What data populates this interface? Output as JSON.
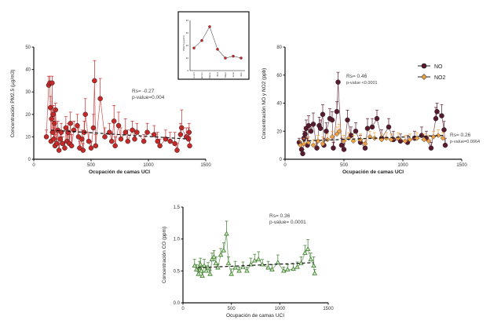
{
  "chart_data": [
    {
      "id": "pm25",
      "type": "scatter",
      "xlabel": "Ocupación de camas UCI",
      "ylabel": "Concentración PM2.5 (µg/m3)",
      "xlim": [
        0,
        1500
      ],
      "ylim": [
        0,
        50
      ],
      "xticks": [
        0,
        500,
        1000,
        1500
      ],
      "yticks": [
        0,
        10,
        20,
        30,
        40,
        50
      ],
      "annotation": [
        "Rs= -0.27",
        "p-value=0.004"
      ],
      "trend": [
        [
          150,
          13
        ],
        [
          1350,
          9
        ]
      ],
      "series": [
        {
          "color": "#c62828",
          "marker": "circle",
          "connected": true,
          "points": [
            [
              110,
              10,
              3
            ],
            [
              130,
              33,
              4
            ],
            [
              140,
              34,
              3
            ],
            [
              145,
              23,
              5
            ],
            [
              150,
              8,
              4
            ],
            [
              155,
              18,
              5
            ],
            [
              160,
              34,
              3
            ],
            [
              165,
              12,
              6
            ],
            [
              170,
              20,
              4
            ],
            [
              175,
              9,
              5
            ],
            [
              180,
              16,
              6
            ],
            [
              185,
              6,
              5
            ],
            [
              190,
              22,
              3
            ],
            [
              200,
              7,
              5
            ],
            [
              210,
              13,
              4
            ],
            [
              220,
              4,
              3
            ],
            [
              230,
              9,
              4
            ],
            [
              240,
              12,
              4
            ],
            [
              250,
              7,
              3
            ],
            [
              270,
              5,
              3
            ],
            [
              280,
              14,
              5
            ],
            [
              290,
              8,
              6
            ],
            [
              300,
              12,
              4
            ],
            [
              310,
              7,
              4
            ],
            [
              320,
              16,
              5
            ],
            [
              330,
              6,
              5
            ],
            [
              350,
              13,
              4
            ],
            [
              380,
              15,
              5
            ],
            [
              390,
              10,
              4
            ],
            [
              400,
              5,
              3
            ],
            [
              420,
              9,
              4
            ],
            [
              430,
              4,
              3
            ],
            [
              440,
              12,
              5
            ],
            [
              450,
              20,
              7
            ],
            [
              480,
              8,
              4
            ],
            [
              500,
              5,
              3
            ],
            [
              520,
              14,
              6
            ],
            [
              530,
              35,
              9
            ],
            [
              540,
              6,
              5
            ],
            [
              580,
              27,
              9
            ],
            [
              620,
              10,
              4
            ],
            [
              660,
              12,
              4
            ],
            [
              680,
              8,
              4
            ],
            [
              700,
              17,
              7
            ],
            [
              710,
              6,
              4
            ],
            [
              740,
              15,
              6
            ],
            [
              760,
              9,
              5
            ],
            [
              800,
              12,
              6
            ],
            [
              820,
              8,
              5
            ],
            [
              860,
              13,
              4
            ],
            [
              880,
              9,
              4
            ],
            [
              900,
              12,
              4
            ],
            [
              960,
              8,
              3
            ],
            [
              990,
              12,
              4
            ],
            [
              1050,
              11,
              4
            ],
            [
              1080,
              8,
              4
            ],
            [
              1100,
              6,
              3
            ],
            [
              1150,
              9,
              4
            ],
            [
              1190,
              8,
              4
            ],
            [
              1230,
              7,
              5
            ],
            [
              1250,
              4,
              3
            ],
            [
              1280,
              11,
              5
            ],
            [
              1290,
              14,
              8
            ],
            [
              1330,
              10,
              4
            ],
            [
              1350,
              9,
              5
            ],
            [
              1355,
              12,
              4
            ],
            [
              1360,
              6,
              4
            ]
          ]
        }
      ]
    },
    {
      "id": "no",
      "type": "scatter",
      "xlabel": "Ocupación de camas UCI",
      "ylabel": "Concentración NO y NO2 (ppb)",
      "xlim": [
        0,
        1500
      ],
      "ylim": [
        0,
        80
      ],
      "xticks": [
        0,
        500,
        1000,
        1500
      ],
      "yticks": [
        0,
        20,
        40,
        60,
        80
      ],
      "annotation": [
        "Rs= 0.46",
        "p-value <0.0001"
      ],
      "annotation2": [
        "Rs= 0.26",
        "p-value=0.0064"
      ],
      "trend": [
        [
          150,
          13
        ],
        [
          1350,
          17
        ]
      ],
      "legend": "top-right",
      "series": [
        {
          "name": "NO",
          "color": "#5a1a2e",
          "marker": "circle",
          "connected": true,
          "points": [
            [
              120,
              12,
              3
            ],
            [
              140,
              7,
              4
            ],
            [
              150,
              4,
              3
            ],
            [
              160,
              15,
              5
            ],
            [
              170,
              18,
              5
            ],
            [
              180,
              22,
              6
            ],
            [
              190,
              10,
              5
            ],
            [
              200,
              24,
              7
            ],
            [
              220,
              20,
              5
            ],
            [
              240,
              25,
              8
            ],
            [
              270,
              8,
              5
            ],
            [
              290,
              24,
              6
            ],
            [
              300,
              22,
              6
            ],
            [
              320,
              32,
              7
            ],
            [
              330,
              10,
              5
            ],
            [
              350,
              20,
              6
            ],
            [
              380,
              29,
              7
            ],
            [
              400,
              28,
              6
            ],
            [
              410,
              8,
              4
            ],
            [
              440,
              34,
              7
            ],
            [
              450,
              55,
              7
            ],
            [
              480,
              10,
              5
            ],
            [
              500,
              7,
              4
            ],
            [
              530,
              28,
              7
            ],
            [
              560,
              17,
              6
            ],
            [
              600,
              20,
              6
            ],
            [
              640,
              12,
              5
            ],
            [
              680,
              8,
              4
            ],
            [
              700,
              22,
              7
            ],
            [
              740,
              23,
              6
            ],
            [
              780,
              29,
              6
            ],
            [
              820,
              15,
              6
            ],
            [
              880,
              23,
              6
            ],
            [
              920,
              14,
              6
            ],
            [
              980,
              13,
              5
            ],
            [
              1040,
              12,
              5
            ],
            [
              1100,
              15,
              5
            ],
            [
              1160,
              17,
              6
            ],
            [
              1200,
              15,
              5
            ],
            [
              1240,
              8,
              4
            ],
            [
              1280,
              29,
              8
            ],
            [
              1290,
              34,
              6
            ],
            [
              1330,
              31,
              8
            ],
            [
              1350,
              21,
              6
            ],
            [
              1360,
              10,
              5
            ]
          ]
        },
        {
          "name": "NO2",
          "color": "#f0a040",
          "marker": "diamond",
          "connected": true,
          "points": [
            [
              130,
              10,
              3
            ],
            [
              160,
              11,
              4
            ],
            [
              200,
              12,
              4
            ],
            [
              240,
              10,
              4
            ],
            [
              280,
              13,
              4
            ],
            [
              320,
              11,
              5
            ],
            [
              360,
              14,
              4
            ],
            [
              400,
              16,
              4
            ],
            [
              440,
              18,
              5
            ],
            [
              460,
              20,
              5
            ],
            [
              500,
              13,
              4
            ],
            [
              540,
              15,
              4
            ],
            [
              580,
              13,
              4
            ],
            [
              640,
              14,
              4
            ],
            [
              680,
              11,
              4
            ],
            [
              720,
              16,
              4
            ],
            [
              760,
              15,
              4
            ],
            [
              820,
              14,
              4
            ],
            [
              860,
              15,
              4
            ],
            [
              900,
              14,
              4
            ],
            [
              960,
              15,
              4
            ],
            [
              1020,
              13,
              4
            ],
            [
              1060,
              14,
              4
            ],
            [
              1120,
              15,
              4
            ],
            [
              1180,
              14,
              4
            ],
            [
              1220,
              13,
              4
            ],
            [
              1260,
              16,
              4
            ],
            [
              1300,
              17,
              4
            ],
            [
              1340,
              15,
              4
            ]
          ]
        }
      ]
    },
    {
      "id": "co",
      "type": "scatter",
      "xlabel": "Ocupación de camas UCI",
      "ylabel": "Concentración CO (ppm)",
      "xlim": [
        0,
        1500
      ],
      "ylim": [
        0,
        1.5
      ],
      "xticks": [
        0,
        500,
        1000,
        1500
      ],
      "yticks": [
        0.0,
        0.5,
        1.0,
        1.5
      ],
      "annotation": [
        "Rs= 0.36",
        "p-value= 0.0001"
      ],
      "trend": [
        [
          150,
          0.55
        ],
        [
          1350,
          0.63
        ]
      ],
      "series": [
        {
          "color": "#3a7a2a",
          "marker": "triangle",
          "connected": true,
          "points": [
            [
              120,
              0.58,
              0.1
            ],
            [
              140,
              0.52,
              0.08
            ],
            [
              160,
              0.45,
              0.08
            ],
            [
              170,
              0.55,
              0.1
            ],
            [
              180,
              0.6,
              0.1
            ],
            [
              190,
              0.5,
              0.08
            ],
            [
              200,
              0.42,
              0.06
            ],
            [
              220,
              0.58,
              0.1
            ],
            [
              240,
              0.5,
              0.08
            ],
            [
              260,
              0.55,
              0.08
            ],
            [
              280,
              0.45,
              0.06
            ],
            [
              300,
              0.68,
              0.1
            ],
            [
              320,
              0.72,
              0.1
            ],
            [
              340,
              0.62,
              0.1
            ],
            [
              360,
              0.55,
              0.06
            ],
            [
              390,
              0.75,
              0.1
            ],
            [
              420,
              0.82,
              0.12
            ],
            [
              450,
              1.08,
              0.2
            ],
            [
              470,
              0.62,
              0.1
            ],
            [
              500,
              0.45,
              0.08
            ],
            [
              540,
              0.55,
              0.1
            ],
            [
              580,
              0.5,
              0.06
            ],
            [
              620,
              0.56,
              0.08
            ],
            [
              660,
              0.5,
              0.06
            ],
            [
              700,
              0.6,
              0.1
            ],
            [
              740,
              0.66,
              0.1
            ],
            [
              780,
              0.68,
              0.12
            ],
            [
              820,
              0.6,
              0.08
            ],
            [
              880,
              0.55,
              0.1
            ],
            [
              920,
              0.52,
              0.08
            ],
            [
              980,
              0.63,
              0.12
            ],
            [
              1040,
              0.5,
              0.06
            ],
            [
              1080,
              0.52,
              0.08
            ],
            [
              1140,
              0.53,
              0.08
            ],
            [
              1180,
              0.56,
              0.08
            ],
            [
              1220,
              0.62,
              0.1
            ],
            [
              1260,
              0.78,
              0.12
            ],
            [
              1290,
              0.84,
              0.15
            ],
            [
              1320,
              0.68,
              0.1
            ],
            [
              1350,
              0.58,
              0.14
            ],
            [
              1360,
              0.46,
              0.06
            ]
          ]
        }
      ]
    },
    {
      "id": "inset",
      "type": "line",
      "ylabel": "PM2.5 (µg/m3)",
      "categories": [
        "Enero",
        "Febrero",
        "Marzo",
        "Abril",
        "Mayo",
        "Junio",
        "Julio"
      ],
      "values": [
        18,
        24,
        35,
        17,
        10,
        11.5,
        10
      ],
      "ylim": [
        0,
        40
      ],
      "yticks": [
        0,
        10,
        20,
        30,
        40
      ],
      "color": "#c62828"
    }
  ]
}
